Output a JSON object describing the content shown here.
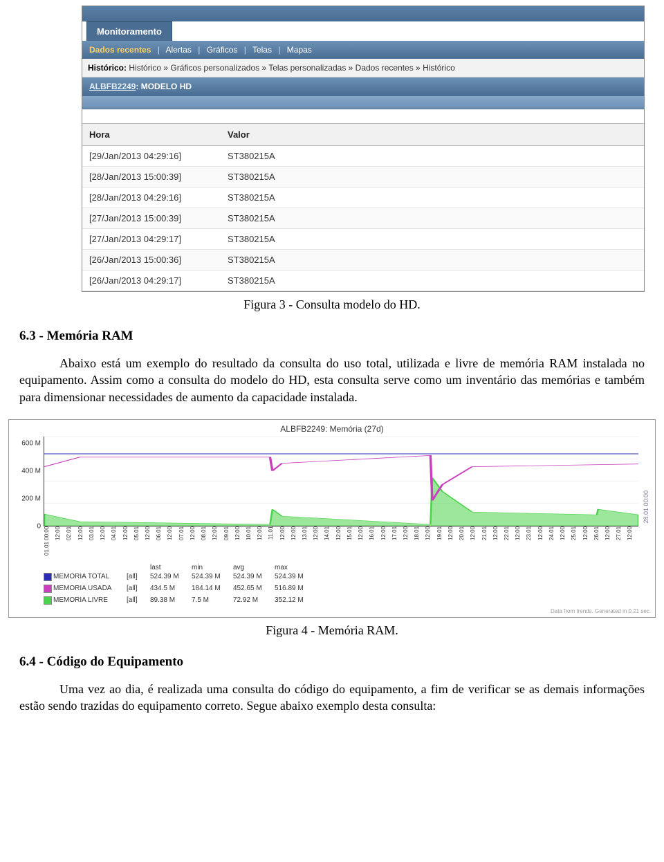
{
  "zabbix": {
    "tab": "Monitoramento",
    "subnav": [
      "Dados recentes",
      "Alertas",
      "Gráficos",
      "Telas",
      "Mapas"
    ],
    "breadcrumb_label": "Histórico:",
    "breadcrumb": [
      "Histórico",
      "Gráficos personalizados",
      "Telas personalizadas",
      "Dados recentes",
      "Histórico"
    ],
    "host_link": "ALBFB2249",
    "host_item": "MODELO HD",
    "columns": {
      "hora": "Hora",
      "valor": "Valor"
    },
    "rows": [
      {
        "hora": "[29/Jan/2013 04:29:16]",
        "valor": "ST380215A"
      },
      {
        "hora": "[28/Jan/2013 15:00:39]",
        "valor": "ST380215A"
      },
      {
        "hora": "[28/Jan/2013 04:29:16]",
        "valor": "ST380215A"
      },
      {
        "hora": "[27/Jan/2013 15:00:39]",
        "valor": "ST380215A"
      },
      {
        "hora": "[27/Jan/2013 04:29:17]",
        "valor": "ST380215A"
      },
      {
        "hora": "[26/Jan/2013 15:00:36]",
        "valor": "ST380215A"
      },
      {
        "hora": "[26/Jan/2013 04:29:17]",
        "valor": "ST380215A"
      }
    ]
  },
  "captions": {
    "fig3": "Figura 3 - Consulta modelo do HD.",
    "fig4": "Figura 4 - Memória RAM."
  },
  "sections": {
    "s63_title": "6.3 - Memória RAM",
    "s63_body": "Abaixo está um exemplo do resultado da consulta do uso total, utilizada e livre de memória RAM instalada no equipamento. Assim como a consulta do modelo do HD, esta consulta serve como um inventário das memórias e também para dimensionar necessidades de aumento da capacidade instalada.",
    "s64_title": "6.4 - Código do Equipamento",
    "s64_body": "Uma vez ao dia, é realizada uma consulta do código do equipamento, a fim de verificar se as demais informações estão sendo trazidas do equipamento correto. Segue abaixo exemplo desta consulta:"
  },
  "chart": {
    "title": "ALBFB2249: Memória (27d)",
    "y_max": 650,
    "y_ticks": [
      0,
      200,
      400,
      600
    ],
    "y_tick_labels": [
      "0",
      "200 M",
      "400 M",
      "600 M"
    ],
    "x_labels": [
      "01.01 00:00",
      "12:00",
      "02.01",
      "12:00",
      "03.01",
      "12:00",
      "04.01",
      "12:00",
      "05.01",
      "12:00",
      "06.01",
      "12:00",
      "07.01",
      "12:00",
      "08.01",
      "12:00",
      "09.01",
      "12:00",
      "10.01",
      "12:00",
      "11.01",
      "12:00",
      "12:00",
      "13.01",
      "12:00",
      "14.01",
      "12:00",
      "15.01",
      "12:00",
      "16.01",
      "12:00",
      "17.01",
      "12:00",
      "18.01",
      "12:00",
      "19.01",
      "12:00",
      "20.01",
      "12:00",
      "21.01",
      "12:00",
      "22.01",
      "12:00",
      "23.01",
      "12:00",
      "24.01",
      "12:00",
      "25.01",
      "12:00",
      "26.01",
      "12:00",
      "27.01",
      "12:00"
    ],
    "right_vertical_text": "28.01 00:00",
    "series": {
      "total": {
        "label": "MEMORIA TOTAL",
        "color": "#2b2bb5",
        "scope": "[all]",
        "last": "524.39 M",
        "min": "524.39 M",
        "avg": "524.39 M",
        "max": "524.39 M",
        "points": [
          [
            0,
            524
          ],
          [
            100,
            524
          ]
        ]
      },
      "usada": {
        "label": "MEMORIA USADA",
        "color": "#c93fbd",
        "scope": "[all]",
        "last": "434.5 M",
        "min": "184.14 M",
        "avg": "452.65 M",
        "max": "516.89 M",
        "points": [
          [
            0,
            430
          ],
          [
            6,
            500
          ],
          [
            38,
            500
          ],
          [
            38.4,
            400
          ],
          [
            40,
            455
          ],
          [
            65,
            512
          ],
          [
            65.3,
            184
          ],
          [
            67,
            300
          ],
          [
            72,
            430
          ],
          [
            100,
            450
          ]
        ]
      },
      "livre": {
        "label": "MEMORIA LIVRE",
        "color": "#4bd34b",
        "scope": "[all]",
        "last": "89.38 M",
        "min": "7.5 M",
        "avg": "72.92 M",
        "max": "352.12 M",
        "points": [
          [
            0,
            85
          ],
          [
            6,
            30
          ],
          [
            38,
            10
          ],
          [
            38.4,
            120
          ],
          [
            40,
            70
          ],
          [
            65,
            10
          ],
          [
            65.3,
            350
          ],
          [
            67,
            250
          ],
          [
            72,
            100
          ],
          [
            93,
            80
          ],
          [
            93.2,
            120
          ],
          [
            100,
            80
          ]
        ]
      }
    },
    "legend_headers": [
      "",
      "",
      "",
      "last",
      "min",
      "avg",
      "max"
    ],
    "footer": "Data from trends. Generated in 0.21 sec.",
    "background": "#ffffff",
    "grid_color": "#d8d8d8"
  }
}
